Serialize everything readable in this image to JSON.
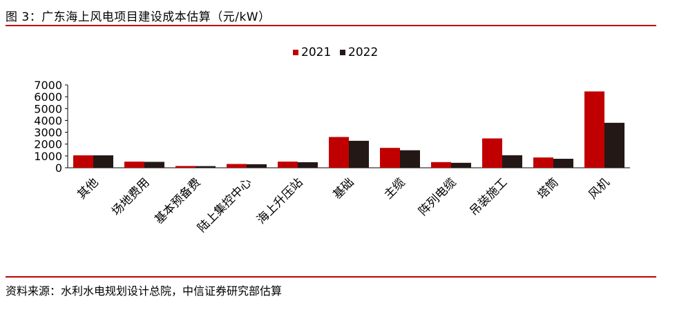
{
  "figure": {
    "title": "图 3：广东海上风电项目建设成本估算（元/kW）",
    "source": "资料来源：水利水电规划设计总院，中信证券研究部估算"
  },
  "chart_data": {
    "type": "bar",
    "categories": [
      "其他",
      "场地费用",
      "基本预备费",
      "陆上集控中心",
      "海上升压站",
      "基础",
      "主缆",
      "阵列电缆",
      "吊装施工",
      "塔筒",
      "风机"
    ],
    "series": [
      {
        "name": "2021",
        "color": "#c00000",
        "values": [
          1050,
          520,
          150,
          320,
          520,
          2600,
          1680,
          480,
          2480,
          870,
          6450
        ]
      },
      {
        "name": "2022",
        "color": "#231815",
        "values": [
          1050,
          500,
          140,
          300,
          470,
          2280,
          1480,
          420,
          1060,
          760,
          3800
        ]
      }
    ],
    "title": "",
    "xlabel": "",
    "ylabel": "",
    "ylim": [
      0,
      7000
    ],
    "yticks": [
      0,
      1000,
      2000,
      3000,
      4000,
      5000,
      6000,
      7000
    ],
    "grid": false,
    "legend_position": "top-center"
  }
}
